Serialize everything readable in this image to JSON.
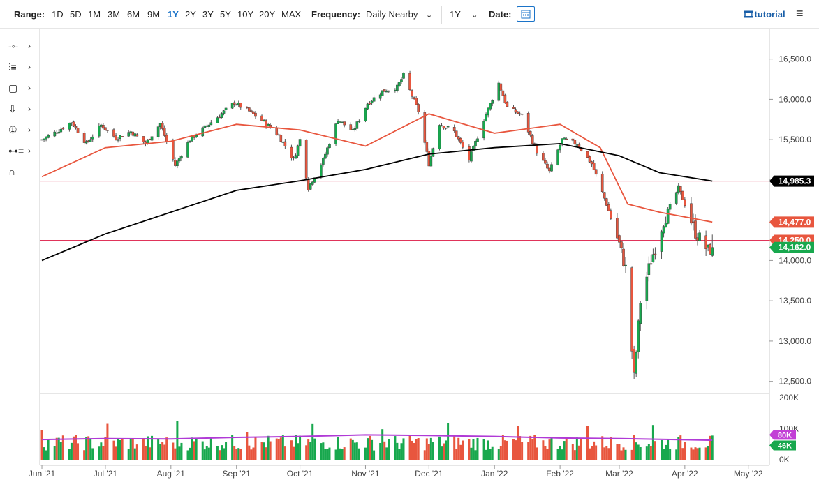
{
  "toolbar": {
    "range_label": "Range:",
    "ranges": [
      "1D",
      "5D",
      "1M",
      "3M",
      "6M",
      "9M",
      "1Y",
      "2Y",
      "3Y",
      "5Y",
      "10Y",
      "20Y",
      "MAX"
    ],
    "active_range": "1Y",
    "frequency_label": "Frequency:",
    "frequency_value": "Daily Nearby",
    "period_value": "1Y",
    "date_label": "Date:",
    "tutorial_label": "tutorial",
    "menu_icon": "hamburger-icon",
    "calendar_icon": "calendar-icon"
  },
  "drawing_tools": [
    {
      "name": "line-tool-icon",
      "glyph": "-o-"
    },
    {
      "name": "fib-tool-icon",
      "glyph": "≡"
    },
    {
      "name": "rectangle-tool-icon",
      "glyph": "□"
    },
    {
      "name": "arrow-tool-icon",
      "glyph": "⇩"
    },
    {
      "name": "annotation-tool-icon",
      "glyph": "①"
    },
    {
      "name": "measure-tool-icon",
      "glyph": "≡"
    },
    {
      "name": "magnet-tool-icon",
      "glyph": "∩"
    }
  ],
  "chart_data": {
    "type": "candlestick",
    "x_labels": [
      "Jun '21",
      "Jul '21",
      "Aug '21",
      "Sep '21",
      "Oct '21",
      "Nov '21",
      "Dec '21",
      "Jan '22",
      "Feb '22",
      "Mar '22",
      "Apr '22",
      "May '22"
    ],
    "y_ticks": [
      "16,500.0",
      "16,000.0",
      "15,500.0",
      "15,000.0",
      "14,500.0",
      "14,000.0",
      "13,500.0",
      "13,000.0",
      "12,500.0"
    ],
    "ylim": [
      12350,
      16800
    ],
    "volume_ticks": [
      "200K",
      "100K",
      "0K"
    ],
    "close_path": [
      [
        "2021-06-01",
        15500
      ],
      [
        "2021-06-08",
        15600
      ],
      [
        "2021-06-15",
        15720
      ],
      [
        "2021-06-22",
        15450
      ],
      [
        "2021-06-29",
        15680
      ],
      [
        "2021-07-06",
        15520
      ],
      [
        "2021-07-13",
        15600
      ],
      [
        "2021-07-20",
        15450
      ],
      [
        "2021-07-27",
        15700
      ],
      [
        "2021-08-03",
        15180
      ],
      [
        "2021-08-10",
        15500
      ],
      [
        "2021-08-17",
        15650
      ],
      [
        "2021-08-24",
        15800
      ],
      [
        "2021-08-31",
        15960
      ],
      [
        "2021-09-07",
        15850
      ],
      [
        "2021-09-14",
        15720
      ],
      [
        "2021-09-21",
        15550
      ],
      [
        "2021-09-28",
        15250
      ],
      [
        "2021-10-01",
        15500
      ],
      [
        "2021-10-05",
        14900
      ],
      [
        "2021-10-12",
        15250
      ],
      [
        "2021-10-19",
        15750
      ],
      [
        "2021-10-26",
        15600
      ],
      [
        "2021-11-02",
        15950
      ],
      [
        "2021-11-09",
        16100
      ],
      [
        "2021-11-16",
        16150
      ],
      [
        "2021-11-19",
        16300
      ],
      [
        "2021-11-26",
        15850
      ],
      [
        "2021-12-01",
        15200
      ],
      [
        "2021-12-06",
        15700
      ],
      [
        "2021-12-13",
        15600
      ],
      [
        "2021-12-20",
        15250
      ],
      [
        "2021-12-27",
        15750
      ],
      [
        "2022-01-03",
        16200
      ],
      [
        "2022-01-07",
        15900
      ],
      [
        "2022-01-14",
        15800
      ],
      [
        "2022-01-21",
        15350
      ],
      [
        "2022-01-27",
        15100
      ],
      [
        "2022-02-02",
        15500
      ],
      [
        "2022-02-09",
        15450
      ],
      [
        "2022-02-16",
        15200
      ],
      [
        "2022-02-23",
        14700
      ],
      [
        "2022-03-01",
        14200
      ],
      [
        "2022-03-04",
        13900
      ],
      [
        "2022-03-08",
        12550
      ],
      [
        "2022-03-11",
        13500
      ],
      [
        "2022-03-16",
        14000
      ],
      [
        "2022-03-22",
        14500
      ],
      [
        "2022-03-29",
        14900
      ],
      [
        "2022-04-01",
        14700
      ],
      [
        "2022-04-06",
        14350
      ],
      [
        "2022-04-12",
        14120
      ],
      [
        "2022-04-14",
        14162
      ]
    ],
    "ma50": [
      [
        "2021-06-01",
        15040
      ],
      [
        "2021-07-01",
        15400
      ],
      [
        "2021-08-01",
        15480
      ],
      [
        "2021-09-01",
        15690
      ],
      [
        "2021-10-01",
        15620
      ],
      [
        "2021-11-01",
        15420
      ],
      [
        "2021-12-01",
        15820
      ],
      [
        "2022-01-01",
        15580
      ],
      [
        "2022-02-01",
        15690
      ],
      [
        "2022-02-20",
        15400
      ],
      [
        "2022-03-05",
        14700
      ],
      [
        "2022-03-20",
        14600
      ],
      [
        "2022-04-14",
        14477
      ]
    ],
    "ma200": [
      [
        "2021-06-01",
        14000
      ],
      [
        "2021-07-01",
        14330
      ],
      [
        "2021-08-01",
        14600
      ],
      [
        "2021-09-01",
        14870
      ],
      [
        "2021-10-01",
        14990
      ],
      [
        "2021-11-01",
        15130
      ],
      [
        "2021-12-01",
        15320
      ],
      [
        "2022-01-01",
        15400
      ],
      [
        "2022-02-01",
        15450
      ],
      [
        "2022-03-01",
        15300
      ],
      [
        "2022-03-20",
        15090
      ],
      [
        "2022-04-14",
        14985.3
      ]
    ],
    "volume_avg": [
      [
        "2021-06-01",
        65
      ],
      [
        "2021-07-01",
        68
      ],
      [
        "2021-08-01",
        67
      ],
      [
        "2021-09-01",
        72
      ],
      [
        "2021-10-01",
        75
      ],
      [
        "2021-11-01",
        80
      ],
      [
        "2021-12-01",
        78
      ],
      [
        "2022-01-01",
        75
      ],
      [
        "2022-02-01",
        70
      ],
      [
        "2022-03-01",
        68
      ],
      [
        "2022-04-14",
        63
      ]
    ],
    "hlines": [
      {
        "value": 14985.3,
        "label": "14,985.3",
        "color": "#000000"
      },
      {
        "value": 14477.0,
        "label": "14,477.0",
        "color": "#e8563e"
      },
      {
        "value": 14250.0,
        "label": "14,250.0",
        "color": "#e8563e"
      },
      {
        "value": 14162.0,
        "label": "14,162.0",
        "color": "#18a84e"
      }
    ],
    "volume_badges": [
      {
        "label": "80K",
        "color": "#c23fd6"
      },
      {
        "label": "46K",
        "color": "#18a84e"
      }
    ],
    "colors": {
      "up": "#18a84e",
      "down": "#e8563e",
      "ma50": "#e8563e",
      "ma200": "#000000",
      "hline": "#e0345a",
      "avg": "#b03ad6"
    }
  }
}
